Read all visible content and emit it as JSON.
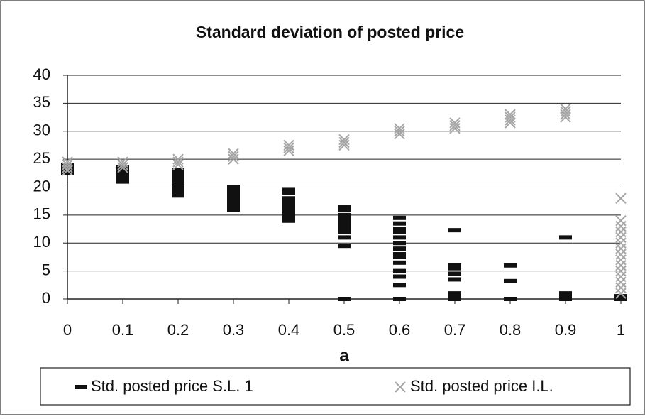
{
  "chart_data": {
    "type": "scatter",
    "title": "Standard deviation of  posted price",
    "x_label": "a",
    "xlim": [
      0,
      1
    ],
    "xticks": [
      0,
      0.1,
      0.2,
      0.3,
      0.4,
      0.5,
      0.6,
      0.7,
      0.8,
      0.9,
      1
    ],
    "ylim": [
      0,
      40
    ],
    "yticks": [
      0,
      5,
      10,
      15,
      20,
      25,
      30,
      35,
      40
    ],
    "grid": true,
    "legend": "bottom",
    "series": [
      {
        "name": "Std. posted price S.L.  1",
        "color": "#111111",
        "marker": "dash",
        "x": [
          0,
          0,
          0,
          0,
          0.1,
          0.1,
          0.1,
          0.1,
          0.1,
          0.1,
          0.2,
          0.2,
          0.2,
          0.2,
          0.2,
          0.2,
          0.2,
          0.2,
          0.2,
          0.2,
          0.3,
          0.3,
          0.3,
          0.3,
          0.3,
          0.3,
          0.3,
          0.3,
          0.3,
          0.4,
          0.4,
          0.4,
          0.4,
          0.4,
          0.4,
          0.4,
          0.4,
          0.4,
          0.4,
          0.4,
          0.5,
          0.5,
          0.5,
          0.5,
          0.5,
          0.5,
          0.5,
          0.5,
          0.5,
          0.5,
          0.5,
          0.5,
          0.6,
          0.6,
          0.6,
          0.6,
          0.6,
          0.6,
          0.6,
          0.6,
          0.6,
          0.6,
          0.6,
          0.6,
          0.6,
          0.6,
          0.7,
          0.7,
          0.7,
          0.7,
          0.7,
          0.7,
          0.7,
          0.7,
          0.8,
          0.8,
          0.8,
          0.9,
          0.9,
          0.9,
          0.9,
          1,
          1
        ],
        "values": [
          22.5,
          23,
          23.5,
          24,
          21,
          21.5,
          22,
          22.5,
          23,
          23.5,
          18.5,
          19,
          19.5,
          20,
          20.5,
          21,
          21.5,
          22,
          22.5,
          23,
          16,
          16.5,
          17,
          17.5,
          18,
          18.5,
          19,
          19.5,
          20,
          14,
          14.5,
          15,
          15.5,
          16,
          16.5,
          17,
          17.5,
          18,
          19,
          19.5,
          0,
          9.5,
          11,
          12,
          12.5,
          13,
          13.5,
          14,
          14.5,
          15,
          16,
          16.5,
          0,
          2.5,
          4,
          5,
          6.5,
          7.5,
          8,
          9,
          10,
          11,
          12,
          12.5,
          13.5,
          14.5,
          0,
          0.5,
          1,
          3.5,
          4.5,
          5.5,
          6,
          12.3,
          0,
          3.2,
          6,
          0,
          0.5,
          1,
          11,
          0,
          0.5
        ]
      },
      {
        "name": "Std. posted price I.L.",
        "color": "#a6a6a6",
        "marker": "x",
        "x": [
          0,
          0,
          0,
          0,
          0.1,
          0.1,
          0.1,
          0.2,
          0.2,
          0.2,
          0.3,
          0.3,
          0.3,
          0.4,
          0.4,
          0.4,
          0.5,
          0.5,
          0.5,
          0.6,
          0.6,
          0.6,
          0.7,
          0.7,
          0.7,
          0.8,
          0.8,
          0.8,
          0.8,
          0.9,
          0.9,
          0.9,
          0.9,
          1,
          1,
          1,
          1,
          1,
          1,
          1,
          1,
          1,
          1,
          1,
          1,
          1,
          1,
          1
        ],
        "values": [
          23,
          23.5,
          24,
          24.5,
          23.5,
          24,
          24.5,
          24,
          24.5,
          25,
          25,
          25.5,
          26,
          26.5,
          27,
          27.5,
          27.5,
          28,
          28.5,
          29.5,
          30,
          30.5,
          30.5,
          31,
          31.5,
          31.5,
          32,
          32.5,
          33,
          32.5,
          33,
          33.5,
          34,
          1,
          2,
          3,
          4,
          5,
          6,
          7,
          8,
          9,
          10,
          11,
          12,
          13,
          14,
          18
        ]
      }
    ]
  }
}
